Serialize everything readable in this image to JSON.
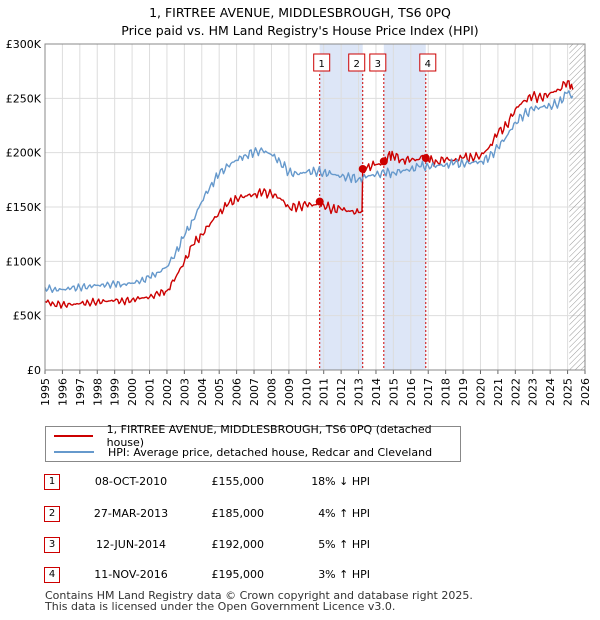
{
  "title_line1": "1, FIRTREE AVENUE, MIDDLESBROUGH, TS6 0PQ",
  "title_line2": "Price paid vs. HM Land Registry's House Price Index (HPI)",
  "colors": {
    "red": "#cc0000",
    "blue": "#6699cc",
    "shade": "#dde6f7",
    "grid": "#dddddd"
  },
  "legend": {
    "red_label": "1, FIRTREE AVENUE, MIDDLESBROUGH, TS6 0PQ (detached house)",
    "blue_label": "HPI: Average price, detached house, Redcar and Cleveland"
  },
  "sales": [
    {
      "num": "1",
      "date": "08-OCT-2010",
      "price": "£155,000",
      "hpi": "18% ↓ HPI"
    },
    {
      "num": "2",
      "date": "27-MAR-2013",
      "price": "£185,000",
      "hpi": "4% ↑ HPI"
    },
    {
      "num": "3",
      "date": "12-JUN-2014",
      "price": "£192,000",
      "hpi": "5% ↑ HPI"
    },
    {
      "num": "4",
      "date": "11-NOV-2016",
      "price": "£195,000",
      "hpi": "3% ↑ HPI"
    }
  ],
  "footer_line1": "Contains HM Land Registry data © Crown copyright and database right 2025.",
  "footer_line2": "This data is licensed under the Open Government Licence v3.0.",
  "chart_data": {
    "type": "line",
    "title": "1, FIRTREE AVENUE, MIDDLESBROUGH, TS6 0PQ",
    "subtitle": "Price paid vs. HM Land Registry's House Price Index (HPI)",
    "xlim": [
      1995,
      2026
    ],
    "ylim": [
      0,
      300000
    ],
    "x_ticks": [
      1995,
      1996,
      1997,
      1998,
      1999,
      2000,
      2001,
      2002,
      2003,
      2004,
      2005,
      2006,
      2007,
      2008,
      2009,
      2010,
      2011,
      2012,
      2013,
      2014,
      2015,
      2016,
      2017,
      2018,
      2019,
      2020,
      2021,
      2022,
      2023,
      2024,
      2025,
      2026
    ],
    "y_ticks": [
      0,
      50000,
      100000,
      150000,
      200000,
      250000,
      300000
    ],
    "y_tick_labels": [
      "£0",
      "£50K",
      "£100K",
      "£150K",
      "£200K",
      "£250K",
      "£300K"
    ],
    "shaded_ranges": [
      [
        2010.77,
        2013.24
      ],
      [
        2014.45,
        2016.86
      ]
    ],
    "hatched_from": 2025.1,
    "series": [
      {
        "name": "1, FIRTREE AVENUE, MIDDLESBROUGH, TS6 0PQ (detached house)",
        "color": "#cc0000",
        "x": [
          1995.0,
          1995.5,
          1996.0,
          1996.5,
          1997.0,
          1997.5,
          1998.0,
          1998.5,
          1999.0,
          1999.5,
          2000.0,
          2000.5,
          2001.0,
          2001.5,
          2002.0,
          2002.5,
          2003.0,
          2003.5,
          2004.0,
          2004.5,
          2005.0,
          2005.5,
          2006.0,
          2006.5,
          2007.0,
          2007.5,
          2008.0,
          2008.5,
          2009.0,
          2009.5,
          2010.0,
          2010.5,
          2010.77,
          2011.0,
          2011.5,
          2012.0,
          2012.5,
          2013.0,
          2013.2,
          2013.24,
          2013.5,
          2014.0,
          2014.45,
          2014.7,
          2015.0,
          2015.5,
          2016.0,
          2016.5,
          2016.86,
          2017.0,
          2017.5,
          2018.0,
          2018.5,
          2019.0,
          2019.5,
          2020.0,
          2020.5,
          2021.0,
          2021.5,
          2022.0,
          2022.5,
          2023.0,
          2023.5,
          2024.0,
          2024.5,
          2025.0,
          2025.3
        ],
        "values": [
          63000,
          61000,
          60000,
          60000,
          61000,
          62000,
          63000,
          63000,
          64000,
          63000,
          65000,
          66000,
          67000,
          70000,
          73000,
          85000,
          100000,
          115000,
          125000,
          135000,
          145000,
          152000,
          158000,
          160000,
          162000,
          163000,
          162000,
          158000,
          150000,
          150000,
          152000,
          152000,
          155000,
          152000,
          148000,
          148000,
          146000,
          145000,
          146000,
          185000,
          187000,
          189000,
          192000,
          198000,
          197000,
          194000,
          193000,
          194000,
          195000,
          193000,
          192000,
          194000,
          193000,
          195000,
          196000,
          197000,
          205000,
          218000,
          225000,
          240000,
          248000,
          252000,
          250000,
          255000,
          258000,
          266000,
          258000
        ]
      },
      {
        "name": "HPI: Average price, detached house, Redcar and Cleveland",
        "color": "#6699cc",
        "x": [
          1995.0,
          1995.5,
          1996.0,
          1996.5,
          1997.0,
          1997.5,
          1998.0,
          1998.5,
          1999.0,
          1999.5,
          2000.0,
          2000.5,
          2001.0,
          2001.5,
          2002.0,
          2002.5,
          2003.0,
          2003.5,
          2004.0,
          2004.5,
          2005.0,
          2005.5,
          2006.0,
          2006.5,
          2007.0,
          2007.5,
          2008.0,
          2008.5,
          2009.0,
          2009.5,
          2010.0,
          2010.5,
          2011.0,
          2011.5,
          2012.0,
          2012.5,
          2013.0,
          2013.5,
          2014.0,
          2014.5,
          2015.0,
          2015.5,
          2016.0,
          2016.5,
          2017.0,
          2017.5,
          2018.0,
          2018.5,
          2019.0,
          2019.5,
          2020.0,
          2020.5,
          2021.0,
          2021.5,
          2022.0,
          2022.5,
          2023.0,
          2023.5,
          2024.0,
          2024.5,
          2025.0,
          2025.3
        ],
        "values": [
          76000,
          74000,
          74000,
          75000,
          76000,
          77000,
          78000,
          78000,
          79000,
          79000,
          80000,
          82000,
          85000,
          90000,
          95000,
          108000,
          123000,
          138000,
          155000,
          170000,
          180000,
          188000,
          193000,
          198000,
          200000,
          202000,
          198000,
          192000,
          182000,
          180000,
          182000,
          183000,
          182000,
          180000,
          178000,
          177000,
          176000,
          178000,
          180000,
          181000,
          182000,
          183000,
          185000,
          187000,
          188000,
          188000,
          189000,
          190000,
          190000,
          191000,
          192000,
          195000,
          205000,
          215000,
          228000,
          235000,
          240000,
          242000,
          243000,
          246000,
          255000,
          252000
        ]
      }
    ],
    "annotations": [
      {
        "label": "1",
        "x": 2010.77,
        "y": 155000
      },
      {
        "label": "2",
        "x": 2013.24,
        "y": 185000
      },
      {
        "label": "3",
        "x": 2014.45,
        "y": 192000
      },
      {
        "label": "4",
        "x": 2016.86,
        "y": 195000
      }
    ]
  }
}
